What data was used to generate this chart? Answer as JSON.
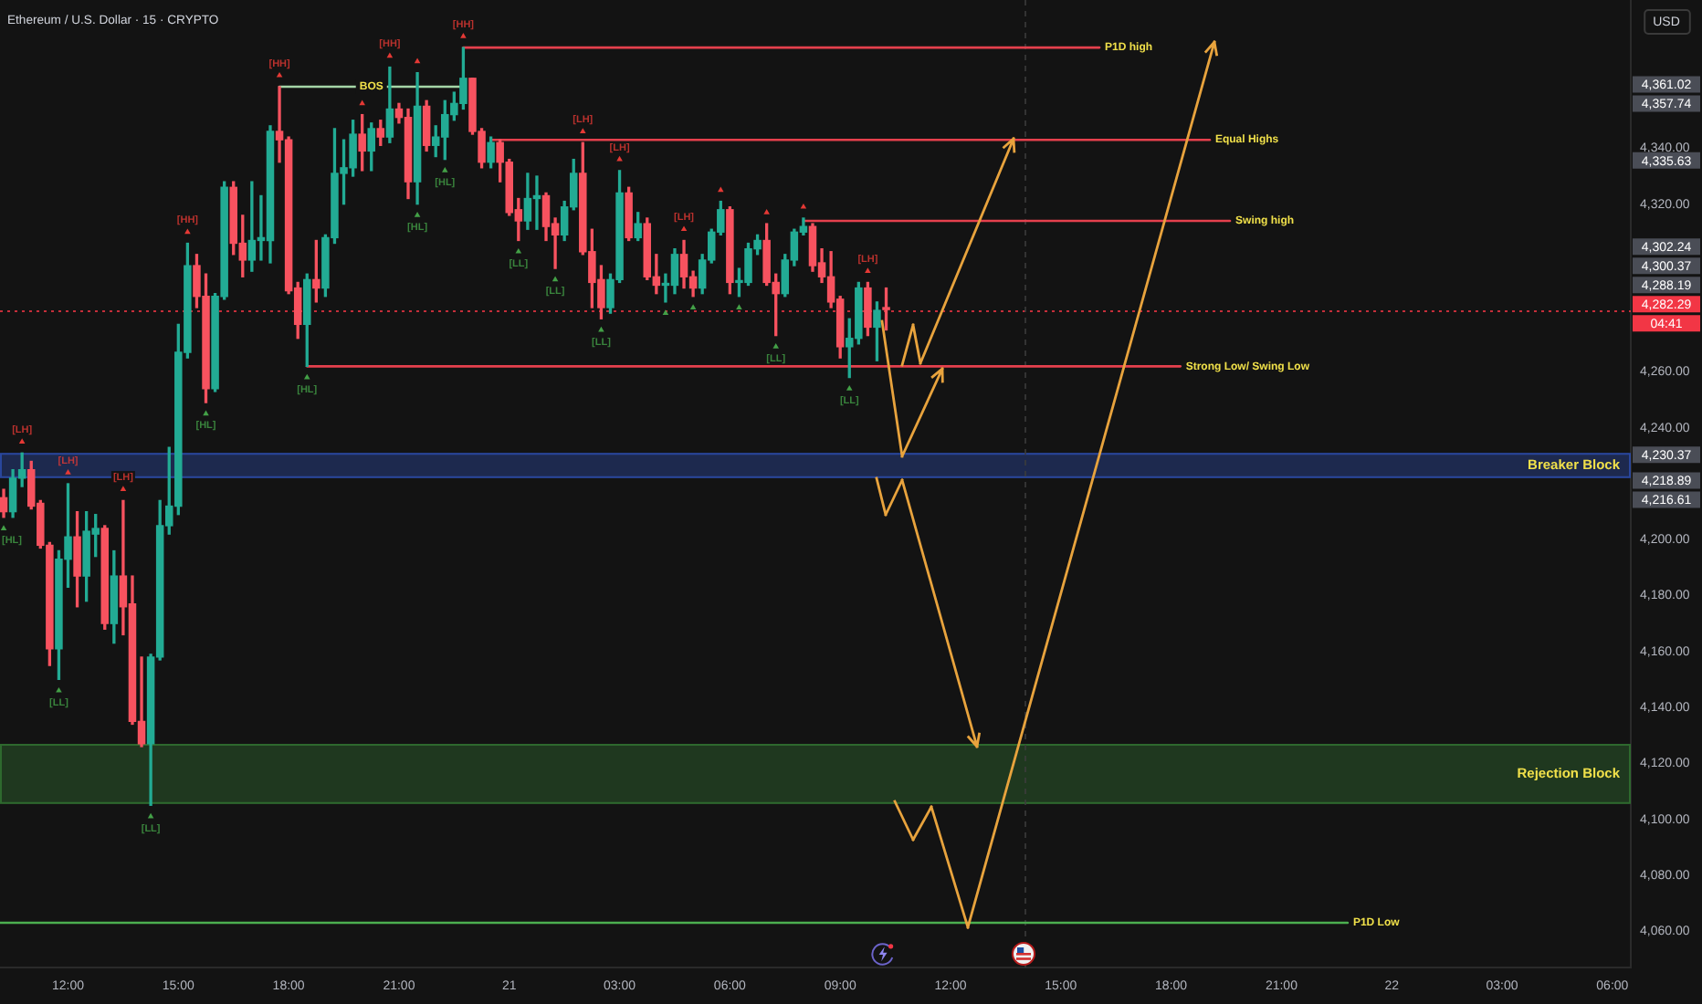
{
  "chart_data": {
    "type": "candlestick",
    "title": "Ethereum / U.S. Dollar · 15 · CRYPTO",
    "ylabel": "USD",
    "x": [
      "--08-20T10:15",
      "--08-20T10:30",
      "--08-20T10:45",
      "--08-20T11:00",
      "--08-20T11:15",
      "--08-20T11:30",
      "--08-20T11:45",
      "--08-20T12:00",
      "--08-20T12:15",
      "--08-20T12:30",
      "--08-20T12:45",
      "--08-20T13:00",
      "--08-20T13:15",
      "--08-20T13:30",
      "--08-20T13:45",
      "--08-20T14:00",
      "--08-20T14:15",
      "--08-20T14:30",
      "--08-20T14:45",
      "--08-20T15:00",
      "--08-20T15:15",
      "--08-20T15:30",
      "--08-20T15:45",
      "--08-20T16:00",
      "--08-20T16:15",
      "--08-20T16:30",
      "--08-20T16:45",
      "--08-20T17:00",
      "--08-20T17:15",
      "--08-20T17:30",
      "--08-20T17:45",
      "--08-20T18:00",
      "--08-20T18:15",
      "--08-20T18:30",
      "--08-20T18:45",
      "--08-20T19:00",
      "--08-20T19:15",
      "--08-20T19:30",
      "--08-20T19:45",
      "--08-20T20:00",
      "--08-20T20:15",
      "--08-20T20:30",
      "--08-20T20:45",
      "--08-20T21:00",
      "--08-20T21:15",
      "--08-20T21:30",
      "--08-20T21:45",
      "--08-20T22:00",
      "--08-20T22:15",
      "--08-20T22:30",
      "--08-20T22:45",
      "--08-20T23:00",
      "--08-20T23:15",
      "--08-20T23:30",
      "--08-20T23:45",
      "--08-21T00:00",
      "--08-21T00:15",
      "--08-21T00:30",
      "--08-21T00:45",
      "--08-21T01:00",
      "--08-21T01:15",
      "--08-21T01:30",
      "--08-21T01:45",
      "--08-21T02:00",
      "--08-21T02:15",
      "--08-21T02:30",
      "--08-21T02:45",
      "--08-21T03:00",
      "--08-21T03:15",
      "--08-21T03:30",
      "--08-21T03:45",
      "--08-21T04:00",
      "--08-21T04:15",
      "--08-21T04:30",
      "--08-21T04:45",
      "--08-21T05:00",
      "--08-21T05:15",
      "--08-21T05:30",
      "--08-21T05:45",
      "--08-21T06:00",
      "--08-21T06:15",
      "--08-21T06:30",
      "--08-21T06:45",
      "--08-21T07:00",
      "--08-21T07:15",
      "--08-21T07:30",
      "--08-21T07:45",
      "--08-21T08:00",
      "--08-21T08:15",
      "--08-21T08:30",
      "--08-21T08:45",
      "--08-21T09:00",
      "--08-21T09:15",
      "--08-21T09:30",
      "--08-21T09:45",
      "--08-21T10:00",
      "--08-21T10:15"
    ],
    "ohlc": [
      [
        4215,
        4218,
        4208,
        4210
      ],
      [
        4210,
        4225,
        4208,
        4222
      ],
      [
        4222,
        4231,
        4219,
        4225
      ],
      [
        4225,
        4228,
        4211,
        4212
      ],
      [
        4213,
        4214,
        4197,
        4198
      ],
      [
        4198,
        4199,
        4155,
        4161
      ],
      [
        4161,
        4196,
        4150,
        4193
      ],
      [
        4193,
        4220,
        4183,
        4201
      ],
      [
        4201,
        4210,
        4176,
        4187
      ],
      [
        4187,
        4210,
        4178,
        4203
      ],
      [
        4202,
        4209,
        4194,
        4204
      ],
      [
        4204,
        4205,
        4168,
        4170
      ],
      [
        4170,
        4196,
        4163,
        4187
      ],
      [
        4187,
        4214,
        4166,
        4176
      ],
      [
        4177,
        4187,
        4134,
        4135
      ],
      [
        4135,
        4158,
        4126,
        4127
      ],
      [
        4127,
        4159,
        4105,
        4158
      ],
      [
        4158,
        4214,
        4157,
        4205
      ],
      [
        4205,
        4233,
        4202,
        4212
      ],
      [
        4212,
        4277,
        4209,
        4267
      ],
      [
        4267,
        4306,
        4265,
        4298
      ],
      [
        4298,
        4302,
        4283,
        4287
      ],
      [
        4287,
        4295,
        4249,
        4254
      ],
      [
        4254,
        4288,
        4253,
        4287
      ],
      [
        4287,
        4328,
        4286,
        4326
      ],
      [
        4326,
        4328,
        4302,
        4306
      ],
      [
        4306,
        4316,
        4294,
        4300
      ],
      [
        4300,
        4328,
        4296,
        4307
      ],
      [
        4307,
        4323,
        4300,
        4308
      ],
      [
        4307,
        4348,
        4299,
        4346
      ],
      [
        4346,
        4362,
        4335,
        4343
      ],
      [
        4343,
        4344,
        4288,
        4289
      ],
      [
        4290,
        4292,
        4272,
        4277
      ],
      [
        4277,
        4295,
        4262,
        4293
      ],
      [
        4293,
        4307,
        4285,
        4290
      ],
      [
        4290,
        4309,
        4287,
        4308
      ],
      [
        4308,
        4347,
        4306,
        4331
      ],
      [
        4331,
        4343,
        4320,
        4333
      ],
      [
        4333,
        4350,
        4330,
        4345
      ],
      [
        4345,
        4352,
        4332,
        4339
      ],
      [
        4339,
        4349,
        4332,
        4347
      ],
      [
        4347,
        4350,
        4341,
        4344
      ],
      [
        4344,
        4369,
        4342,
        4354
      ],
      [
        4354,
        4356,
        4349,
        4351
      ],
      [
        4351,
        4354,
        4322,
        4328
      ],
      [
        4328,
        4367,
        4320,
        4355
      ],
      [
        4355,
        4357,
        4339,
        4341
      ],
      [
        4341,
        4348,
        4337,
        4344
      ],
      [
        4344,
        4357,
        4336,
        4352
      ],
      [
        4352,
        4360,
        4350,
        4356
      ],
      [
        4356,
        4376,
        4354,
        4365
      ],
      [
        4365,
        4365,
        4345,
        4346
      ],
      [
        4346,
        4347,
        4333,
        4335
      ],
      [
        4335,
        4344,
        4333,
        4342
      ],
      [
        4342,
        4343,
        4328,
        4335
      ],
      [
        4335,
        4336,
        4316,
        4317
      ],
      [
        4318,
        4322,
        4307,
        4314
      ],
      [
        4314,
        4331,
        4311,
        4322
      ],
      [
        4322,
        4330,
        4311,
        4323
      ],
      [
        4323,
        4324,
        4307,
        4312
      ],
      [
        4313,
        4315,
        4297,
        4309
      ],
      [
        4309,
        4321,
        4307,
        4319
      ],
      [
        4319,
        4336,
        4318,
        4331
      ],
      [
        4331,
        4342,
        4302,
        4303
      ],
      [
        4303,
        4311,
        4283,
        4292
      ],
      [
        4293,
        4298,
        4279,
        4283
      ],
      [
        4283,
        4295,
        4281,
        4293
      ],
      [
        4293,
        4332,
        4292,
        4324
      ],
      [
        4324,
        4326,
        4307,
        4308
      ],
      [
        4308,
        4317,
        4307,
        4313
      ],
      [
        4313,
        4315,
        4293,
        4294
      ],
      [
        4294,
        4302,
        4288,
        4291
      ],
      [
        4291,
        4295,
        4285,
        4291
      ],
      [
        4291,
        4304,
        4288,
        4302
      ],
      [
        4302,
        4307,
        4290,
        4294
      ],
      [
        4294,
        4296,
        4287,
        4290
      ],
      [
        4290,
        4302,
        4288,
        4300
      ],
      [
        4300,
        4311,
        4299,
        4310
      ],
      [
        4310,
        4321,
        4309,
        4318
      ],
      [
        4318,
        4319,
        4288,
        4292
      ],
      [
        4292,
        4297,
        4287,
        4292
      ],
      [
        4292,
        4306,
        4291,
        4304
      ],
      [
        4304,
        4309,
        4302,
        4307
      ],
      [
        4307,
        4313,
        4291,
        4292
      ],
      [
        4292,
        4295,
        4273,
        4288
      ],
      [
        4288,
        4302,
        4287,
        4300
      ],
      [
        4300,
        4311,
        4298,
        4310
      ],
      [
        4310,
        4315,
        4309,
        4312
      ],
      [
        4312,
        4313,
        4296,
        4298
      ],
      [
        4299,
        4304,
        4292,
        4294
      ],
      [
        4294,
        4303,
        4283,
        4285
      ],
      [
        4286,
        4287,
        4265,
        4269
      ],
      [
        4269,
        4279,
        4258,
        4272
      ],
      [
        4272,
        4292,
        4270,
        4290
      ],
      [
        4290,
        4292,
        4273,
        4276
      ],
      [
        4276,
        4285,
        4264,
        4282
      ],
      [
        4283,
        4290,
        4275,
        4282.29
      ]
    ],
    "colors": [
      "#f7525f",
      "#22ab94",
      "#22ab94",
      "#f7525f",
      "#f7525f",
      "#f7525f",
      "#22ab94",
      "#22ab94",
      "#f7525f",
      "#22ab94",
      "#22ab94",
      "#f7525f",
      "#22ab94",
      "#f7525f",
      "#f7525f",
      "#f7525f",
      "#22ab94",
      "#22ab94",
      "#22ab94",
      "#22ab94",
      "#22ab94",
      "#f7525f",
      "#f7525f",
      "#22ab94",
      "#22ab94",
      "#f7525f",
      "#f7525f",
      "#22ab94",
      "#22ab94",
      "#22ab94",
      "#f7525f",
      "#f7525f",
      "#f7525f",
      "#22ab94",
      "#f7525f",
      "#22ab94",
      "#22ab94",
      "#22ab94",
      "#22ab94",
      "#f7525f",
      "#22ab94",
      "#f7525f",
      "#22ab94",
      "#f7525f",
      "#f7525f",
      "#22ab94",
      "#f7525f",
      "#22ab94",
      "#22ab94",
      "#22ab94",
      "#22ab94",
      "#f7525f",
      "#f7525f",
      "#22ab94",
      "#f7525f",
      "#f7525f",
      "#f7525f",
      "#22ab94",
      "#22ab94",
      "#f7525f",
      "#f7525f",
      "#22ab94",
      "#22ab94",
      "#f7525f",
      "#f7525f",
      "#f7525f",
      "#22ab94",
      "#22ab94",
      "#f7525f",
      "#22ab94",
      "#f7525f",
      "#f7525f",
      "#22ab94",
      "#22ab94",
      "#f7525f",
      "#f7525f",
      "#22ab94",
      "#22ab94",
      "#22ab94",
      "#f7525f",
      "#22ab94",
      "#22ab94",
      "#22ab94",
      "#f7525f",
      "#f7525f",
      "#22ab94",
      "#22ab94",
      "#22ab94",
      "#f7525f",
      "#f7525f",
      "#f7525f",
      "#f7525f",
      "#22ab94",
      "#22ab94",
      "#f7525f",
      "#22ab94",
      "#f7525f"
    ],
    "series": [
      {
        "type": "scatter",
        "color": "#e53935",
        "marker": "triangle",
        "x": [
          "--08-20T10:45",
          "--08-20T12:00",
          "--08-20T13:30",
          "--08-20T15:15",
          "--08-20T17:45",
          "--08-20T20:00",
          "--08-20T20:45",
          "--08-20T21:30",
          "--08-20T22:45",
          "--08-21T02:00",
          "--08-21T03:00",
          "--08-21T04:45",
          "--08-21T05:45",
          "--08-21T07:00",
          "--08-21T08:00",
          "--08-21T09:45"
        ],
        "values": [
          4235,
          4224,
          4218,
          4310,
          4366,
          4356,
          4373,
          4371,
          4380,
          4346,
          4336,
          4311,
          4325,
          4317,
          4319,
          4296
        ]
      },
      {
        "type": "scatter",
        "color": "#43a047",
        "marker": "triangle",
        "x": [
          "--08-20T10:15",
          "--08-20T11:45",
          "--08-20T14:15",
          "--08-20T15:45",
          "--08-20T18:30",
          "--08-20T21:30",
          "--08-20T22:15",
          "--08-21T00:15",
          "--08-21T01:15",
          "--08-21T02:30",
          "--08-21T04:15",
          "--08-21T05:00",
          "--08-21T06:15",
          "--08-21T07:15",
          "--08-21T09:15"
        ],
        "values": [
          4204,
          4146,
          4101,
          4245,
          4258,
          4316,
          4332,
          4303,
          4293,
          4275,
          4281,
          4283,
          4283,
          4269,
          4254
        ]
      },
      {
        "type": "line",
        "name": "P1D high",
        "color": "#e5404d",
        "x": [
          "--08-20T22:45",
          "--08-21T16:03"
        ],
        "values": [
          4376,
          4376
        ]
      },
      {
        "type": "line",
        "name": "Equal Highs",
        "color": "#e5404d",
        "x": [
          "--08-20T23:30",
          "--08-21T19:03"
        ],
        "values": [
          4343,
          4343
        ]
      },
      {
        "type": "line",
        "name": "Swing high",
        "color": "#e5404d",
        "x": [
          "--08-21T08:00",
          "--08-21T19:36"
        ],
        "values": [
          4314,
          4314
        ]
      },
      {
        "type": "line",
        "name": "Strong Low/ Swing Low",
        "color": "#e5404d",
        "x": [
          "--08-20T18:30",
          "--08-21T18:15"
        ],
        "values": [
          4262,
          4262
        ]
      },
      {
        "type": "line",
        "name": "P1D Low",
        "color": "#4caf50",
        "x": [
          "--08-20T10:09",
          "--08-21T22:48"
        ],
        "values": [
          4063,
          4063
        ]
      },
      {
        "type": "line",
        "name": "BOS",
        "color": "#a5d6a7",
        "x": [
          "--08-20T17:45",
          "--08-20T22:45"
        ],
        "values": [
          4362,
          4362
        ]
      }
    ],
    "ref_lines": [
      {
        "axis": "y",
        "value": 4282.29,
        "label": "4,282.29",
        "color": "#f23645",
        "line_style": "dotted"
      },
      {
        "axis": "x",
        "value": "--08-21T14:00",
        "color": "#3c3c3c",
        "line_style": "dashed"
      }
    ],
    "bands": [
      {
        "axis": "y",
        "from": 4222,
        "to": 4231,
        "label": "Breaker Block",
        "color": "#2a48a0"
      },
      {
        "axis": "y",
        "from": 4105.5,
        "to": 4127,
        "label": "Rejection Block",
        "color": "#2f6b2f"
      }
    ],
    "annotations": [
      {
        "text": "[HL]",
        "x": "--08-20T10:15",
        "y": 4204
      },
      {
        "text": "[LH]",
        "x": "--08-20T10:45",
        "y": 4235
      },
      {
        "text": "[LL]",
        "x": "--08-20T11:45",
        "y": 4146
      },
      {
        "text": "[LH]",
        "x": "--08-20T12:00",
        "y": 4224
      },
      {
        "text": "[LH]",
        "x": "--08-20T13:30",
        "y": 4218
      },
      {
        "text": "[LL]",
        "x": "--08-20T14:15",
        "y": 4101
      },
      {
        "text": "[HH]",
        "x": "--08-20T15:15",
        "y": 4310
      },
      {
        "text": "[HL]",
        "x": "--08-20T15:45",
        "y": 4245
      },
      {
        "text": "[HH]",
        "x": "--08-20T17:45",
        "y": 4366
      },
      {
        "text": "[HL]",
        "x": "--08-20T18:30",
        "y": 4258
      },
      {
        "text": "[HH]",
        "x": "--08-20T20:45",
        "y": 4373
      },
      {
        "text": "[HL]",
        "x": "--08-20T21:30",
        "y": 4316
      },
      {
        "text": "[HL]",
        "x": "--08-20T22:15",
        "y": 4332
      },
      {
        "text": "[HH]",
        "x": "--08-20T22:45",
        "y": 4380
      },
      {
        "text": "[LL]",
        "x": "--08-21T00:15",
        "y": 4303
      },
      {
        "text": "[LL]",
        "x": "--08-21T01:15",
        "y": 4293
      },
      {
        "text": "[LH]",
        "x": "--08-21T02:00",
        "y": 4346
      },
      {
        "text": "[LL]",
        "x": "--08-21T02:30",
        "y": 4275
      },
      {
        "text": "[LH]",
        "x": "--08-21T03:00",
        "y": 4336
      },
      {
        "text": "[LH]",
        "x": "--08-21T04:45",
        "y": 4311
      },
      {
        "text": "[LL]",
        "x": "--08-21T07:15",
        "y": 4269
      },
      {
        "text": "[LL]",
        "x": "--08-21T09:15",
        "y": 4254
      },
      {
        "text": "[LH]",
        "x": "--08-21T09:45",
        "y": 4296
      },
      "4,361.02",
      "4,357.74",
      "4,335.63",
      "4,302.24",
      "4,300.37",
      "4,288.19",
      "04:41",
      "4,230.37",
      "4,218.89",
      "4,216.61"
    ],
    "xlim": [
      "--08-20T10:09",
      "--08-22T06:30"
    ],
    "ylim": [
      4047,
      4393
    ],
    "xticks": [
      {
        "value": "--08-20T12:00",
        "label": "12:00"
      },
      {
        "value": "--08-20T15:00",
        "label": "15:00"
      },
      {
        "value": "--08-20T18:00",
        "label": "18:00"
      },
      {
        "value": "--08-20T21:00",
        "label": "21:00"
      },
      {
        "value": "--08-21T00:00",
        "label": "21"
      },
      {
        "value": "--08-21T03:00",
        "label": "03:00"
      },
      {
        "value": "--08-21T06:00",
        "label": "06:00"
      },
      {
        "value": "--08-21T09:00",
        "label": "09:00"
      },
      {
        "value": "--08-21T12:00",
        "label": "12:00"
      },
      {
        "value": "--08-21T15:00",
        "label": "15:00"
      },
      {
        "value": "--08-21T18:00",
        "label": "18:00"
      },
      {
        "value": "--08-21T21:00",
        "label": "21:00"
      },
      {
        "value": "--08-22T00:00",
        "label": "22"
      },
      {
        "value": "--08-22T03:00",
        "label": "03:00"
      },
      {
        "value": "--08-22T06:00",
        "label": "06:00"
      }
    ],
    "yticks": [
      {
        "value": 4060,
        "label": "4,060.00"
      },
      {
        "value": 4080,
        "label": "4,080.00"
      },
      {
        "value": 4100,
        "label": "4,100.00"
      },
      {
        "value": 4120,
        "label": "4,120.00"
      },
      {
        "value": 4140,
        "label": "4,140.00"
      },
      {
        "value": 4160,
        "label": "4,160.00"
      },
      {
        "value": 4180,
        "label": "4,180.00"
      },
      {
        "value": 4200,
        "label": "4,200.00"
      },
      {
        "value": 4240,
        "label": "4,240.00"
      },
      {
        "value": 4260,
        "label": "4,260.00"
      },
      {
        "value": 4320,
        "label": "4,320.00"
      },
      {
        "value": 4340,
        "label": "4,340.00"
      }
    ],
    "grid": false,
    "legend": false
  }
}
